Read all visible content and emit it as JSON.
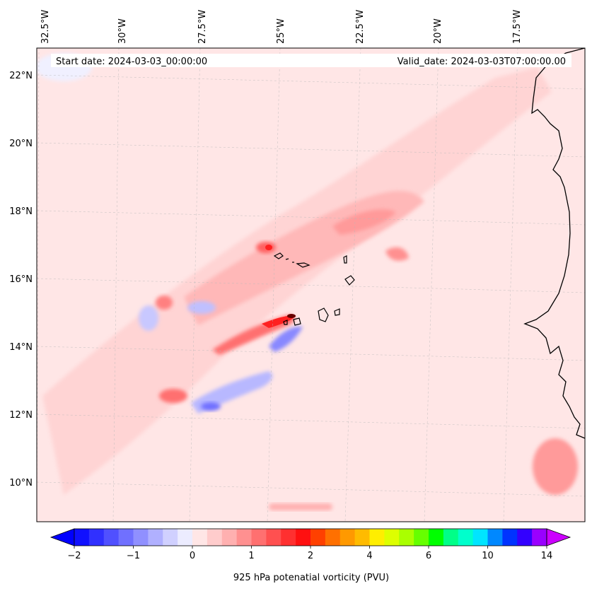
{
  "header": {
    "start_date": "Start date: 2024-03-03_00:00:00",
    "valid_date": "Valid_date: 2024-03-03T07:00:00.00"
  },
  "map": {
    "lon_ticks": [
      "32.5°W",
      "30°W",
      "27.5°W",
      "25°W",
      "22.5°W",
      "20°W",
      "17.5°W"
    ],
    "lat_ticks": [
      "22°N",
      "20°N",
      "18°N",
      "16°N",
      "14°N",
      "12°N",
      "10°N"
    ],
    "background_color": "#ffe6e6",
    "features": [
      "Cape Verde islands",
      "West African coastline"
    ]
  },
  "colorbar": {
    "label": "925 hPa potenatial vorticity (PVU)",
    "ticks": [
      "−2",
      "−1",
      "0",
      "1",
      "2",
      "4",
      "6",
      "10",
      "14"
    ],
    "colors": [
      "#1010ff",
      "#3030ff",
      "#5050ff",
      "#7070ff",
      "#9090ff",
      "#b0b0ff",
      "#d0d0ff",
      "#ececff",
      "#ffe6e6",
      "#ffcccc",
      "#ffb0b0",
      "#ff9090",
      "#ff7070",
      "#ff5050",
      "#ff3030",
      "#ff1010",
      "#ff4000",
      "#ff7000",
      "#ff9900",
      "#ffbb00",
      "#ffee00",
      "#ddff00",
      "#aaff00",
      "#66ff00",
      "#00ff00",
      "#00ff88",
      "#00ffcc",
      "#00e5ff",
      "#0088ff",
      "#0033ff",
      "#3300ff",
      "#9900ff"
    ],
    "extend_low_color": "#0000ff",
    "extend_high_color": "#cc00ff"
  }
}
